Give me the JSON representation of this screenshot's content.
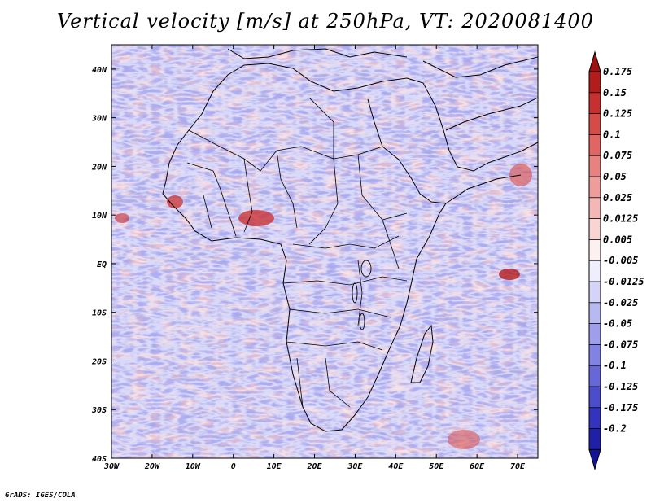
{
  "title": "Vertical velocity [m/s] at 250hPa, VT: 2020081400",
  "credit": "GrADS: IGES/COLA",
  "map": {
    "lat_ticks": [
      "40N",
      "30N",
      "20N",
      "10N",
      "EQ",
      "10S",
      "20S",
      "30S",
      "40S"
    ],
    "lon_ticks": [
      "30W",
      "20W",
      "10W",
      "0",
      "10E",
      "20E",
      "30E",
      "40E",
      "50E",
      "60E",
      "70E"
    ],
    "lat_values": [
      40,
      30,
      20,
      10,
      0,
      -10,
      -20,
      -30,
      -40
    ],
    "lon_values": [
      -30,
      -20,
      -10,
      0,
      10,
      20,
      30,
      40,
      50,
      60,
      70
    ]
  },
  "colorbar": {
    "labels": [
      "0.175",
      "0.15",
      "0.125",
      "0.1",
      "0.075",
      "0.05",
      "0.025",
      "0.0125",
      "0.005",
      "-0.005",
      "-0.0125",
      "-0.025",
      "-0.05",
      "-0.075",
      "-0.1",
      "-0.125",
      "-0.175",
      "-0.2"
    ],
    "colors": [
      "#b41c1c",
      "#c8302f",
      "#d64a48",
      "#e06563",
      "#e88280",
      "#ee9d9b",
      "#f3b8b6",
      "#f8d4d3",
      "#fdf0f0",
      "#eeeefc",
      "#d4d4f8",
      "#b9b9f2",
      "#9e9eec",
      "#8282e4",
      "#6767da",
      "#4c4cce",
      "#3333bf",
      "#1f1fa8"
    ],
    "top_color": "#a01010",
    "bottom_color": "#14149a"
  },
  "colors": {
    "field_base": "#a8a8ee",
    "positive": "#ef9c9a",
    "negative": "#6d6dd8"
  }
}
